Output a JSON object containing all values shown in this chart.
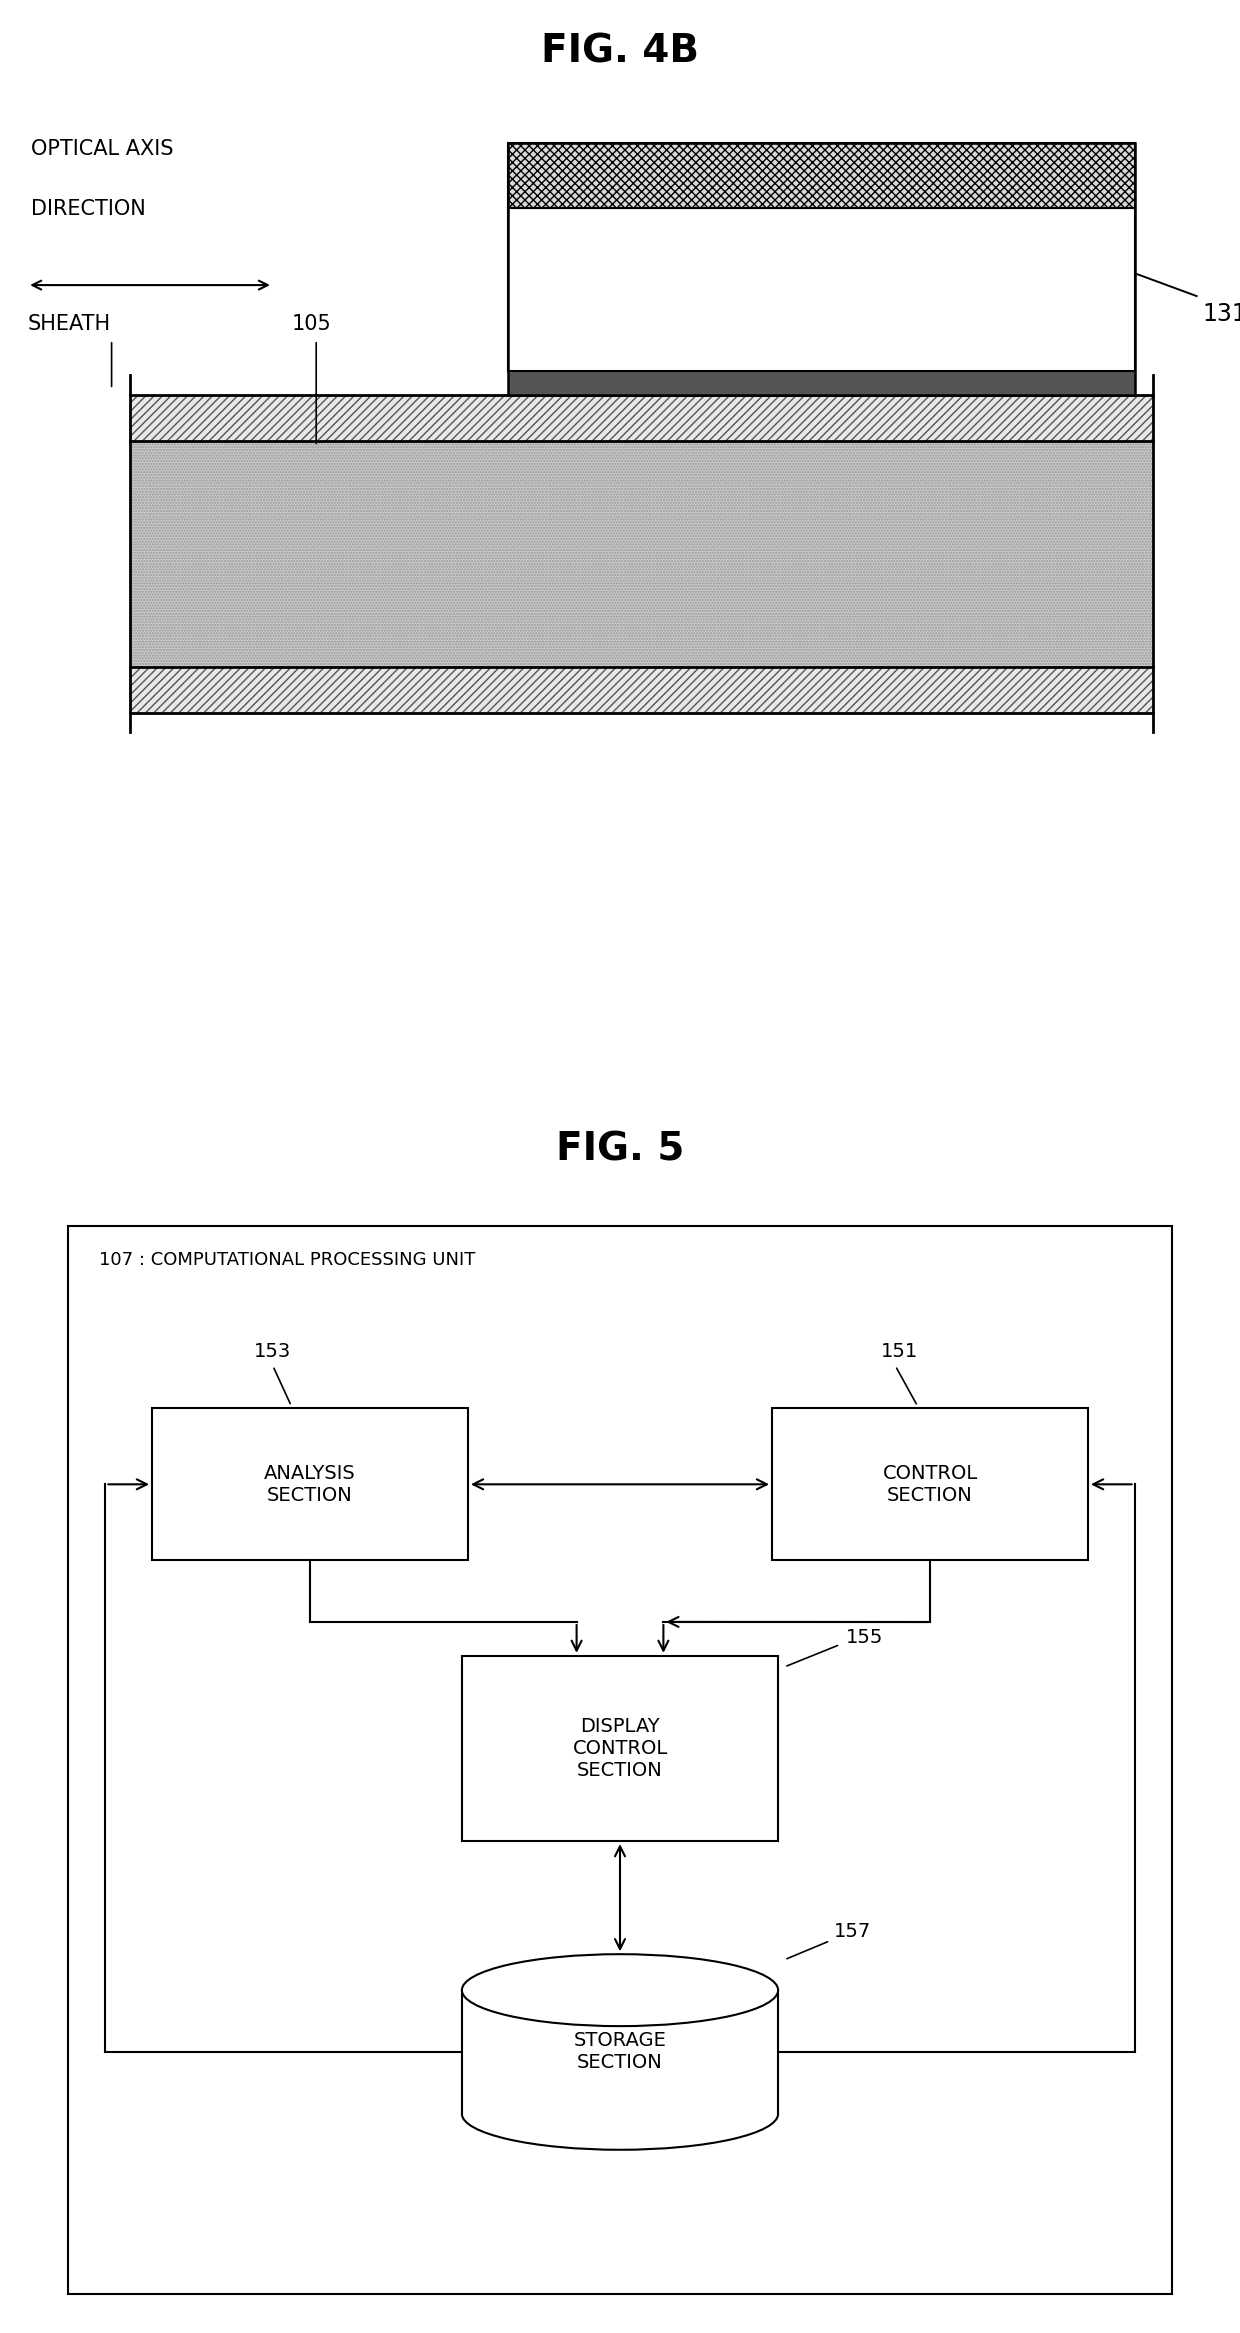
{
  "fig4b_title": "FIG. 4B",
  "fig5_title": "FIG. 5",
  "fig_width": 12.4,
  "fig_height": 23.33,
  "background_color": "#ffffff",
  "text_color": "#000000",
  "box_edgecolor": "#000000",
  "cpu_label": "107 : COMPUTATIONAL PROCESSING UNIT",
  "analysis_label": "ANALYSIS\nSECTION",
  "control_label": "CONTROL\nSECTION",
  "display_label": "DISPLAY\nCONTROL\nSECTION",
  "storage_label": "STORAGE\nSECTION",
  "analysis_num": "153",
  "control_num": "151",
  "display_num": "155",
  "storage_num": "157",
  "optical_axis_text1": "OPTICAL AXIS",
  "optical_axis_text2": "DIRECTION",
  "sheath_text": "SHEATH",
  "label_105": "105",
  "label_131": "131"
}
